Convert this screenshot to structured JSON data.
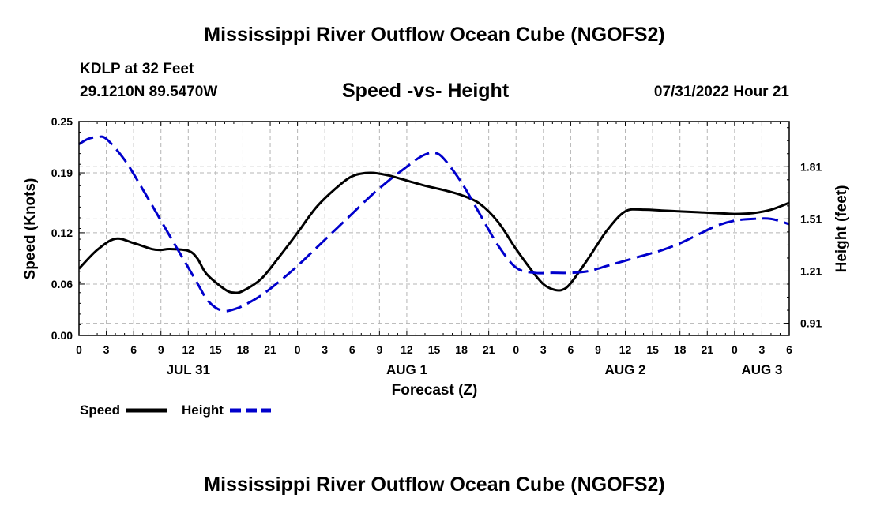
{
  "header": {
    "title": "Mississippi River Outflow Ocean Cube (NGOFS2)",
    "station": "KDLP at 32 Feet",
    "coords": "29.1210N  89.5470W",
    "subtitle": "Speed -vs- Height",
    "date": "07/31/2022 Hour 21"
  },
  "footer": {
    "title": "Mississippi River Outflow Ocean Cube (NGOFS2)"
  },
  "chart_data": {
    "type": "line",
    "title": "Speed -vs- Height",
    "xlabel": "Forecast (Z)",
    "ylabel": "Speed (Knots)",
    "y2label": "Height (feet)",
    "x_unit": "hours from JUL 31 00Z",
    "xlim": [
      0,
      78
    ],
    "ylim": [
      0,
      0.25
    ],
    "y2lim": [
      0.84,
      2.07
    ],
    "x_ticks": [
      0,
      3,
      6,
      9,
      12,
      15,
      18,
      21,
      24,
      27,
      30,
      33,
      36,
      39,
      42,
      45,
      48,
      51,
      54,
      57,
      60,
      63,
      66,
      69,
      72,
      75,
      78
    ],
    "x_tick_labels": [
      "0",
      "3",
      "6",
      "9",
      "12",
      "15",
      "18",
      "21",
      "0",
      "3",
      "6",
      "9",
      "12",
      "15",
      "18",
      "21",
      "0",
      "3",
      "6",
      "9",
      "12",
      "15",
      "18",
      "21",
      "0",
      "3",
      "6"
    ],
    "day_labels": [
      {
        "x": 12,
        "label": "JUL 31"
      },
      {
        "x": 36,
        "label": "AUG 1"
      },
      {
        "x": 60,
        "label": "AUG 2"
      },
      {
        "x": 75,
        "label": "AUG 3"
      }
    ],
    "y_ticks": [
      0.0,
      0.06,
      0.12,
      0.19,
      0.25
    ],
    "y_tick_labels": [
      "0.00",
      "0.06",
      "0.12",
      "0.19",
      "0.25"
    ],
    "y2_ticks": [
      0.91,
      1.21,
      1.51,
      1.81
    ],
    "y2_tick_labels": [
      "0.91",
      "1.21",
      "1.51",
      "1.81"
    ],
    "grid": true,
    "series": [
      {
        "name": "Speed",
        "axis": "left",
        "color": "#000000",
        "dash": "solid",
        "x": [
          0,
          2,
          4,
          6,
          8,
          9,
          10,
          12,
          13,
          14,
          16,
          17,
          18,
          20,
          22,
          24,
          26,
          28,
          30,
          32,
          34,
          36,
          38,
          40,
          42,
          44,
          46,
          48,
          50,
          51,
          52,
          53,
          54,
          56,
          58,
          60,
          62,
          64,
          66,
          68,
          70,
          72,
          74,
          76,
          78
        ],
        "values": [
          0.078,
          0.1,
          0.113,
          0.108,
          0.101,
          0.1,
          0.101,
          0.099,
          0.09,
          0.072,
          0.054,
          0.05,
          0.052,
          0.066,
          0.092,
          0.12,
          0.149,
          0.17,
          0.186,
          0.19,
          0.187,
          0.181,
          0.175,
          0.17,
          0.164,
          0.154,
          0.133,
          0.101,
          0.072,
          0.06,
          0.054,
          0.053,
          0.061,
          0.091,
          0.123,
          0.145,
          0.147,
          0.146,
          0.145,
          0.144,
          0.143,
          0.142,
          0.143,
          0.147,
          0.155
        ]
      },
      {
        "name": "Height",
        "axis": "right",
        "color": "#0000cc",
        "dash": "dashed",
        "x": [
          0,
          1,
          2,
          3,
          5,
          7,
          9,
          11,
          13,
          14,
          15,
          16,
          17,
          18,
          20,
          22,
          24,
          26,
          28,
          30,
          32,
          34,
          36,
          37,
          38,
          39,
          40,
          42,
          44,
          46,
          48,
          50,
          52,
          54,
          56,
          58,
          60,
          62,
          64,
          66,
          68,
          70,
          72,
          74,
          76,
          78
        ],
        "values": [
          1.94,
          1.97,
          1.98,
          1.97,
          1.85,
          1.68,
          1.5,
          1.32,
          1.14,
          1.05,
          1.0,
          0.98,
          0.99,
          1.01,
          1.07,
          1.15,
          1.24,
          1.34,
          1.44,
          1.54,
          1.64,
          1.73,
          1.81,
          1.85,
          1.88,
          1.89,
          1.86,
          1.72,
          1.54,
          1.36,
          1.23,
          1.2,
          1.2,
          1.2,
          1.21,
          1.24,
          1.27,
          1.3,
          1.33,
          1.37,
          1.42,
          1.47,
          1.5,
          1.51,
          1.51,
          1.48
        ]
      }
    ],
    "legend": {
      "position": "bottom-left",
      "entries": [
        {
          "label": "Speed",
          "color": "#000000",
          "dash": "solid"
        },
        {
          "label": "Height",
          "color": "#0000cc",
          "dash": "dashed"
        }
      ]
    }
  }
}
